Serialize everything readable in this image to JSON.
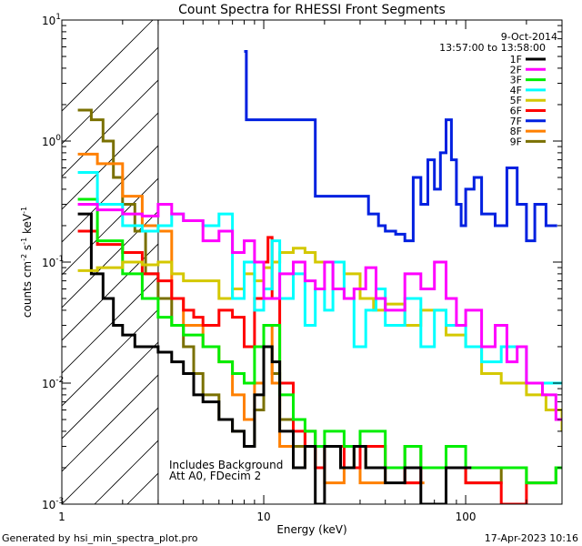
{
  "chart_data": {
    "type": "line",
    "title": "Count Spectra for RHESSI Front Segments",
    "xlabel": "Energy (keV)",
    "ylabel_parts": [
      "counts cm",
      "-2",
      " s",
      "-1",
      " keV",
      "-1"
    ],
    "x_scale": "log",
    "y_scale": "log",
    "xlim": [
      1,
      300
    ],
    "ylim": [
      0.001,
      10
    ],
    "x_ticks": [
      {
        "value": 1,
        "label": "1"
      },
      {
        "value": 10,
        "label": "10"
      },
      {
        "value": 100,
        "label": "100"
      }
    ],
    "y_ticks": [
      {
        "value": 0.001,
        "base": "10",
        "exp": "-3"
      },
      {
        "value": 0.01,
        "base": "10",
        "exp": "-2"
      },
      {
        "value": 0.1,
        "base": "10",
        "exp": "-1"
      },
      {
        "value": 1,
        "base": "10",
        "exp": "0"
      },
      {
        "value": 10,
        "base": "10",
        "exp": "1"
      }
    ],
    "excluded_region_max_energy": 3,
    "date": "9-Oct-2014",
    "time_range": "13:57:00 to 13:58:00",
    "annotations": [
      "Includes Background",
      "Att A0, FDecim 2"
    ],
    "footer_left": "Generated by hsi_min_spectra_plot.pro",
    "footer_right": "17-Apr-2023 10:16",
    "series": [
      {
        "name": "1F",
        "color": "#000000",
        "x": [
          1.2,
          1.4,
          1.6,
          1.8,
          2.0,
          2.3,
          2.6,
          3.0,
          3.5,
          4.0,
          4.5,
          5.0,
          6.0,
          7.0,
          8.0,
          9.0,
          10.0,
          11.0,
          12.0,
          14.0,
          16.0,
          18.0,
          20.0,
          24.0,
          28.0,
          32.0,
          40.0,
          50.0,
          60.0,
          80.0
        ],
        "y": [
          0.25,
          0.08,
          0.05,
          0.03,
          0.025,
          0.02,
          0.02,
          0.018,
          0.015,
          0.012,
          0.008,
          0.007,
          0.005,
          0.004,
          0.003,
          0.008,
          0.02,
          0.015,
          0.004,
          0.002,
          0.003,
          0.001,
          0.003,
          0.002,
          0.003,
          0.002,
          0.0015,
          0.002,
          0.001,
          0.002
        ]
      },
      {
        "name": "2F",
        "color": "#ff00ff",
        "x": [
          1.2,
          1.5,
          2.0,
          2.5,
          3.0,
          3.5,
          4.0,
          5.0,
          6.0,
          7.0,
          8.0,
          9.0,
          10.0,
          12.0,
          14.0,
          16.0,
          18.0,
          20.0,
          22.0,
          25.0,
          28.0,
          32.0,
          36.0,
          40.0,
          50.0,
          60.0,
          70.0,
          80.0,
          90.0,
          100.0,
          120.0,
          140.0,
          160.0,
          180.0,
          200.0,
          240.0,
          280.0
        ],
        "y": [
          0.3,
          0.27,
          0.25,
          0.24,
          0.3,
          0.25,
          0.22,
          0.15,
          0.18,
          0.12,
          0.15,
          0.1,
          0.05,
          0.08,
          0.1,
          0.07,
          0.06,
          0.1,
          0.06,
          0.05,
          0.06,
          0.09,
          0.05,
          0.04,
          0.08,
          0.06,
          0.1,
          0.05,
          0.03,
          0.04,
          0.02,
          0.03,
          0.015,
          0.02,
          0.01,
          0.008,
          0.005
        ]
      },
      {
        "name": "3F",
        "color": "#00ee00",
        "x": [
          1.2,
          1.5,
          2.0,
          2.5,
          3.0,
          3.5,
          4.0,
          5.0,
          6.0,
          7.0,
          8.0,
          9.0,
          10.0,
          12.0,
          14.0,
          16.0,
          18.0,
          20.0,
          25.0,
          30.0,
          40.0,
          50.0,
          60.0,
          80.0,
          100.0,
          150.0,
          200.0,
          280.0
        ],
        "y": [
          0.33,
          0.15,
          0.08,
          0.05,
          0.035,
          0.03,
          0.025,
          0.02,
          0.015,
          0.012,
          0.01,
          0.02,
          0.03,
          0.008,
          0.005,
          0.004,
          0.003,
          0.004,
          0.003,
          0.004,
          0.002,
          0.003,
          0.002,
          0.003,
          0.002,
          0.002,
          0.0015,
          0.002
        ]
      },
      {
        "name": "4F",
        "color": "#00ffff",
        "x": [
          1.2,
          1.5,
          2.0,
          2.5,
          3.0,
          3.5,
          4.0,
          5.0,
          6.0,
          7.0,
          8.0,
          9.0,
          10.0,
          11.0,
          12.0,
          14.0,
          16.0,
          18.0,
          20.0,
          22.0,
          25.0,
          28.0,
          32.0,
          36.0,
          40.0,
          50.0,
          60.0,
          70.0,
          80.0,
          100.0,
          120.0,
          150.0,
          200.0,
          280.0
        ],
        "y": [
          0.55,
          0.3,
          0.2,
          0.18,
          0.2,
          0.25,
          0.22,
          0.2,
          0.25,
          0.05,
          0.1,
          0.04,
          0.06,
          0.15,
          0.05,
          0.08,
          0.03,
          0.06,
          0.04,
          0.1,
          0.05,
          0.02,
          0.04,
          0.06,
          0.03,
          0.05,
          0.02,
          0.04,
          0.03,
          0.02,
          0.015,
          0.02,
          0.01,
          0.01
        ]
      },
      {
        "name": "5F",
        "color": "#d4c800",
        "x": [
          1.2,
          1.5,
          2.0,
          2.5,
          3.0,
          3.5,
          4.0,
          5.0,
          6.0,
          7.0,
          8.0,
          9.0,
          10.0,
          11.0,
          12.0,
          14.0,
          16.0,
          18.0,
          20.0,
          25.0,
          30.0,
          35.0,
          40.0,
          50.0,
          60.0,
          80.0,
          100.0,
          120.0,
          150.0,
          200.0,
          250.0,
          300.0
        ],
        "y": [
          0.085,
          0.09,
          0.1,
          0.095,
          0.1,
          0.08,
          0.07,
          0.07,
          0.05,
          0.06,
          0.08,
          0.07,
          0.09,
          0.1,
          0.12,
          0.13,
          0.12,
          0.1,
          0.1,
          0.08,
          0.05,
          0.04,
          0.045,
          0.03,
          0.04,
          0.025,
          0.02,
          0.012,
          0.01,
          0.008,
          0.006,
          0.004
        ]
      },
      {
        "name": "6F",
        "color": "#ff0000",
        "x": [
          1.2,
          1.5,
          2.0,
          2.5,
          3.0,
          3.5,
          4.0,
          4.5,
          5.0,
          6.0,
          7.0,
          8.0,
          9.0,
          10.0,
          10.5,
          11.0,
          12.0,
          14.0,
          16.0,
          18.0,
          20.0,
          25.0,
          30.0,
          40.0,
          50.0,
          60.0,
          80.0,
          100.0,
          150.0,
          200.0
        ],
        "y": [
          0.18,
          0.14,
          0.12,
          0.08,
          0.07,
          0.05,
          0.04,
          0.035,
          0.03,
          0.04,
          0.035,
          0.02,
          0.05,
          0.1,
          0.16,
          0.05,
          0.01,
          0.004,
          0.003,
          0.002,
          0.003,
          0.002,
          0.003,
          0.002,
          0.0015,
          0.002,
          0.002,
          0.0015,
          0.001,
          0.0015
        ]
      },
      {
        "name": "7F",
        "color": "#0020e0",
        "x": [
          8.0,
          8.2,
          18.0,
          33.0,
          37.0,
          40.0,
          45.0,
          50.0,
          55.0,
          60.0,
          65.0,
          70.0,
          75.0,
          80.0,
          85.0,
          90.0,
          95.0,
          100.0,
          110.0,
          120.0,
          140.0,
          160.0,
          180.0,
          200.0,
          220.0,
          250.0
        ],
        "y": [
          5.5,
          1.5,
          0.35,
          0.25,
          0.2,
          0.18,
          0.17,
          0.15,
          0.5,
          0.3,
          0.7,
          0.4,
          0.8,
          1.5,
          0.7,
          0.3,
          0.2,
          0.4,
          0.5,
          0.25,
          0.2,
          0.6,
          0.3,
          0.15,
          0.3,
          0.2
        ]
      },
      {
        "name": "8F",
        "color": "#ff8000",
        "x": [
          1.2,
          1.5,
          2.0,
          2.5,
          3.0,
          3.5,
          4.0,
          5.0,
          6.0,
          7.0,
          8.0,
          9.0,
          10.0,
          11.0,
          12.0,
          14.0,
          16.0,
          18.0,
          20.0,
          25.0,
          30.0,
          40.0,
          50.0
        ],
        "y": [
          0.78,
          0.65,
          0.35,
          0.2,
          0.18,
          0.05,
          0.03,
          0.02,
          0.015,
          0.008,
          0.005,
          0.01,
          0.03,
          0.01,
          0.003,
          0.002,
          0.003,
          0.002,
          0.0015,
          0.002,
          0.0015,
          0.002,
          0.0015
        ]
      },
      {
        "name": "9F",
        "color": "#7a7000",
        "x": [
          1.2,
          1.4,
          1.6,
          1.8,
          2.0,
          2.3,
          2.6,
          3.0,
          3.5,
          4.0,
          4.5,
          5.0,
          6.0,
          7.0,
          8.0,
          9.0,
          10.0,
          11.0,
          12.0,
          14.0,
          16.0,
          18.0,
          20.0,
          24.0,
          28.0,
          32.0,
          40.0,
          50.0,
          60.0,
          80.0,
          100.0,
          150.0,
          200.0,
          280.0
        ],
        "y": [
          1.8,
          1.5,
          1.0,
          0.5,
          0.3,
          0.18,
          0.08,
          0.05,
          0.03,
          0.02,
          0.012,
          0.008,
          0.005,
          0.004,
          0.003,
          0.006,
          0.02,
          0.012,
          0.005,
          0.003,
          0.004,
          0.002,
          0.003,
          0.002,
          0.003,
          0.002,
          0.002,
          0.003,
          0.002,
          0.002,
          0.0015,
          0.002,
          0.0015,
          0.002
        ]
      }
    ]
  }
}
